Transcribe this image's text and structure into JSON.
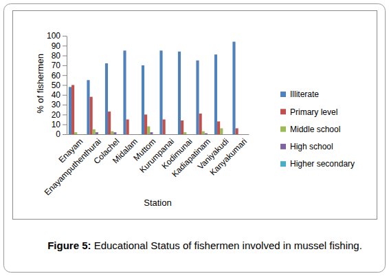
{
  "chart_data": {
    "type": "bar",
    "title": "Figure 5: Educational Status of fishermen involved in mussel fishing.",
    "x_label": "Station",
    "y_label": "% of fishermen",
    "categories": [
      "Enayam",
      "Enayamputhenthurai",
      "Colachel",
      "Midalam",
      "Muttom",
      "Kurumpanai",
      "Kodimunai",
      "Kadiapatinam",
      "Vaniyakudi",
      "Kanyakumari"
    ],
    "series": [
      {
        "name": "Illiterate",
        "color": "#4f81bd",
        "values": [
          48,
          55,
          72,
          85,
          70,
          85,
          84,
          75,
          81,
          94
        ]
      },
      {
        "name": "Primary level",
        "color": "#c0504d",
        "values": [
          50,
          38,
          23,
          15,
          20,
          15,
          14,
          21,
          13,
          6
        ]
      },
      {
        "name": "Middle school",
        "color": "#9bbb59",
        "values": [
          2,
          5,
          3,
          0,
          8,
          0,
          2,
          3,
          6,
          0
        ]
      },
      {
        "name": "High school",
        "color": "#8064a2",
        "values": [
          0,
          2,
          2,
          0,
          2,
          0,
          0,
          1,
          0,
          0
        ]
      },
      {
        "name": "Higher secondary",
        "color": "#4bacc6",
        "values": [
          0,
          0,
          0,
          0,
          0,
          0,
          0,
          0,
          0,
          0
        ]
      }
    ],
    "ylim": [
      0,
      100
    ],
    "yticks": [
      0,
      10,
      20,
      30,
      40,
      50,
      60,
      70,
      80,
      90,
      100
    ],
    "grid": false,
    "legend": "right"
  }
}
